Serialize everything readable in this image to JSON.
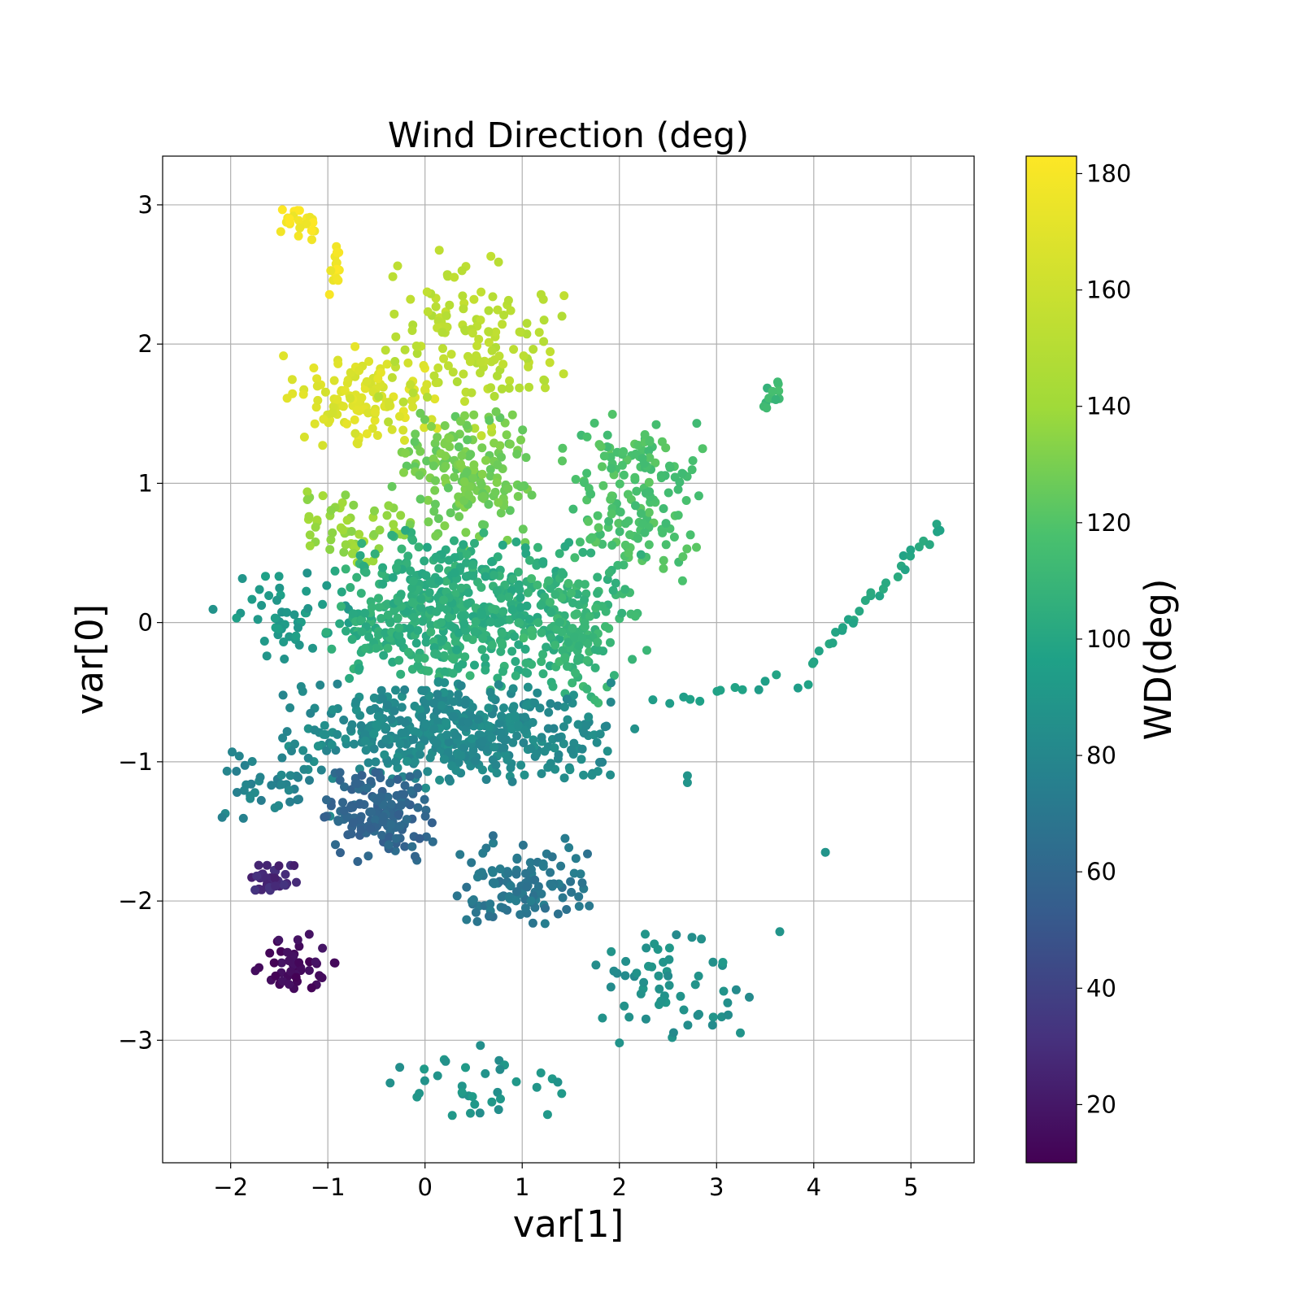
{
  "chart_data": {
    "type": "scatter",
    "title": "Wind Direction (deg)",
    "xlabel": "var[1]",
    "ylabel": "var[0]",
    "xlim": [
      -2.7,
      5.65
    ],
    "ylim": [
      -3.88,
      3.35
    ],
    "xticks": [
      -2,
      -1,
      0,
      1,
      2,
      3,
      4,
      5
    ],
    "yticks": [
      -3,
      -2,
      -1,
      0,
      1,
      2,
      3
    ],
    "xtick_labels": [
      "−2",
      "−1",
      "0",
      "1",
      "2",
      "3",
      "4",
      "5"
    ],
    "ytick_labels": [
      "−3",
      "−2",
      "−1",
      "0",
      "1",
      "2",
      "3"
    ],
    "grid": true,
    "colorbar": {
      "label": "WD(deg)",
      "colormap": "viridis",
      "range": [
        10,
        183
      ],
      "ticks": [
        20,
        40,
        60,
        80,
        100,
        120,
        140,
        160,
        180
      ],
      "tick_labels": [
        "20",
        "40",
        "60",
        "80",
        "100",
        "120",
        "140",
        "160",
        "180"
      ]
    },
    "clusters": [
      {
        "x": [
          -1.6,
          -1.0
        ],
        "y": [
          2.7,
          3.02
        ],
        "c": 180,
        "n": 25
      },
      {
        "x": [
          -1.0,
          -0.85
        ],
        "y": [
          2.28,
          2.9
        ],
        "c": 178,
        "n": 14
      },
      {
        "x": [
          -1.55,
          0.2
        ],
        "y": [
          1.22,
          2.0
        ],
        "c": 168,
        "n": 120
      },
      {
        "x": [
          -0.5,
          1.5
        ],
        "y": [
          1.3,
          2.7
        ],
        "c": 152,
        "n": 140
      },
      {
        "x": [
          -1.5,
          0.0
        ],
        "y": [
          0.4,
          1.0
        ],
        "c": 138,
        "n": 60
      },
      {
        "x": [
          -0.4,
          1.2
        ],
        "y": [
          0.5,
          1.6
        ],
        "c": 128,
        "n": 170
      },
      {
        "x": [
          1.3,
          3.0
        ],
        "y": [
          0.3,
          1.55
        ],
        "c": 118,
        "n": 160
      },
      {
        "x": [
          3.4,
          3.7
        ],
        "y": [
          1.52,
          1.75
        ],
        "c": 112,
        "n": 12
      },
      {
        "x": [
          -2.3,
          -0.6
        ],
        "y": [
          -0.3,
          0.4
        ],
        "c": 92,
        "n": 50
      },
      {
        "x": [
          -1.1,
          1.6
        ],
        "y": [
          -0.5,
          0.7
        ],
        "c": 105,
        "n": 500
      },
      {
        "x": [
          1.0,
          2.3
        ],
        "y": [
          -0.6,
          0.6
        ],
        "c": 110,
        "n": 150
      },
      {
        "x": [
          -1.6,
          2.2
        ],
        "y": [
          -1.2,
          -0.4
        ],
        "c": 82,
        "n": 450
      },
      {
        "x": [
          -2.35,
          -0.9
        ],
        "y": [
          -1.45,
          -0.9
        ],
        "c": 78,
        "n": 40
      },
      {
        "x": [
          -1.1,
          0.2
        ],
        "y": [
          -1.75,
          -1.0
        ],
        "c": 60,
        "n": 150
      },
      {
        "x": [
          0.2,
          1.8
        ],
        "y": [
          -2.25,
          -1.5
        ],
        "c": 70,
        "n": 110
      },
      {
        "x": [
          -1.85,
          -1.3
        ],
        "y": [
          -2.0,
          -1.72
        ],
        "c": 28,
        "n": 40
      },
      {
        "x": [
          -1.95,
          -0.8
        ],
        "y": [
          -2.7,
          -2.2
        ],
        "c": 15,
        "n": 45
      },
      {
        "x": [
          -0.5,
          1.6
        ],
        "y": [
          -3.56,
          -3.0
        ],
        "c": 88,
        "n": 35
      },
      {
        "x": [
          1.6,
          3.45
        ],
        "y": [
          -3.1,
          -2.1
        ],
        "c": 86,
        "n": 60
      }
    ],
    "trails": [
      {
        "from": [
          2.4,
          -0.58
        ],
        "to": [
          3.9,
          -0.4
        ],
        "c": 96,
        "n": 14
      },
      {
        "from": [
          4.0,
          -0.3
        ],
        "to": [
          5.3,
          0.72
        ],
        "c": 100,
        "n": 30
      }
    ],
    "isolated": [
      {
        "x": 4.12,
        "y": -1.65,
        "c": 88
      },
      {
        "x": 3.65,
        "y": -2.22,
        "c": 88
      },
      {
        "x": 2.7,
        "y": -1.1,
        "c": 88
      },
      {
        "x": 2.7,
        "y": -1.15,
        "c": 88
      },
      {
        "x": 2.65,
        "y": 0.3,
        "c": 118
      }
    ]
  }
}
